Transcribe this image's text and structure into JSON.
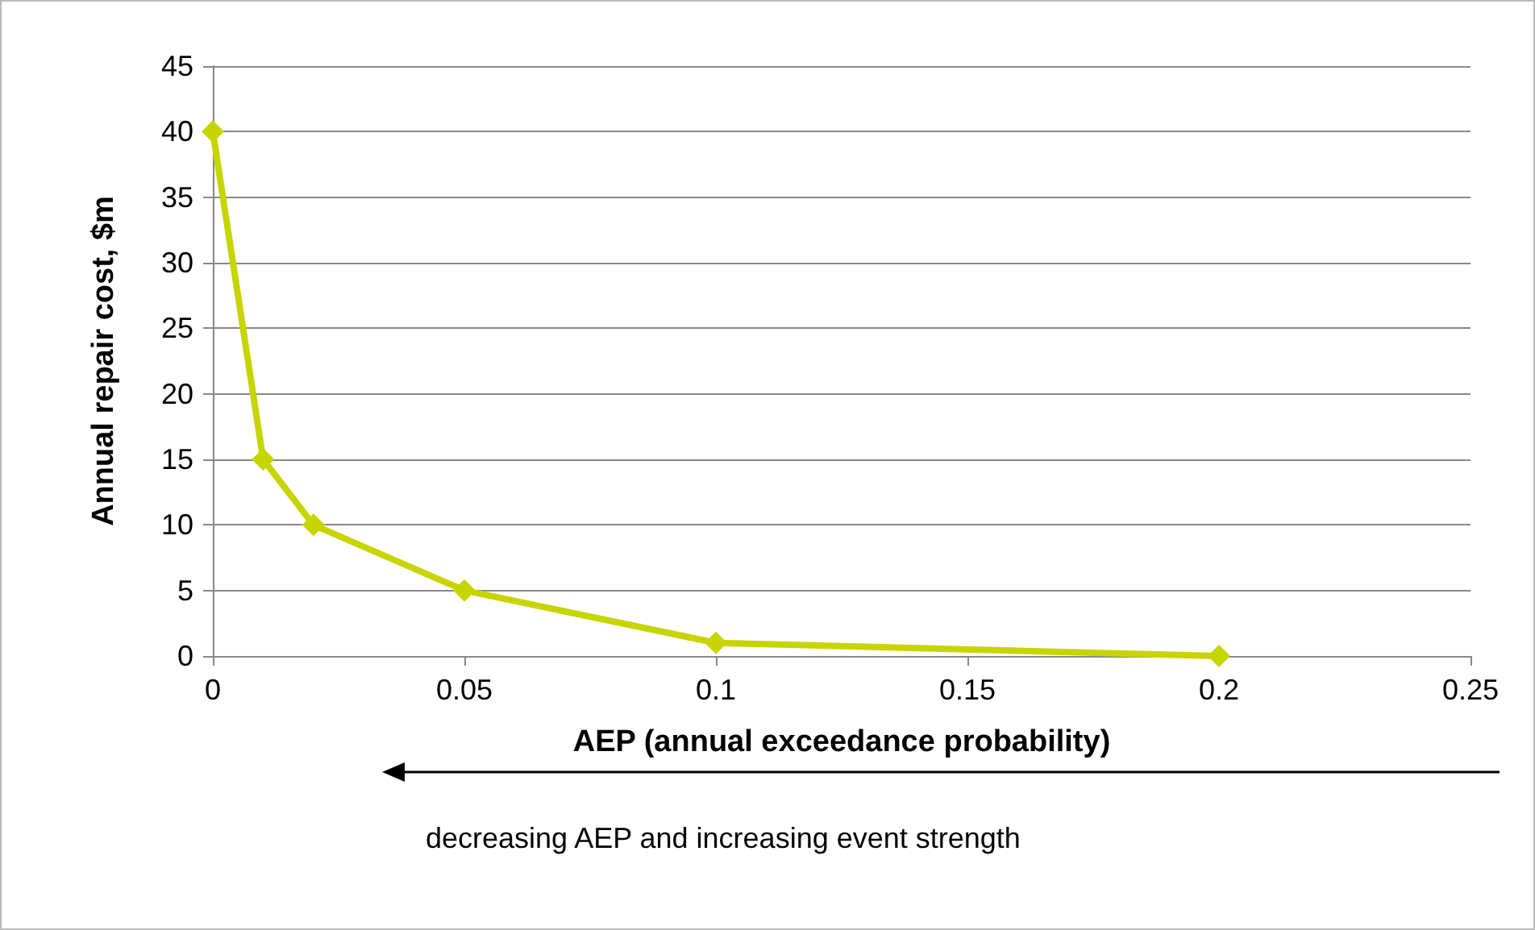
{
  "chart_data": {
    "type": "line",
    "xlabel": "AEP (annual exceedance probability)",
    "ylabel": "Annual repair cost, $m",
    "x": [
      0,
      0.01,
      0.02,
      0.05,
      0.1,
      0.2
    ],
    "series": [
      {
        "color": "#c8d400",
        "values": [
          40,
          15,
          10,
          5,
          1,
          0
        ]
      }
    ],
    "xlim": [
      0,
      0.25
    ],
    "xticks": [
      0,
      0.05,
      0.1,
      0.15,
      0.2,
      0.25
    ],
    "ylim": [
      0,
      45
    ],
    "yticks": [
      0,
      5,
      10,
      15,
      20,
      25,
      30,
      35,
      40,
      45
    ],
    "grid": "y",
    "marker": "diamond",
    "line_style": "solid",
    "annotations": [
      "decreasing AEP and increasing event strength"
    ]
  }
}
